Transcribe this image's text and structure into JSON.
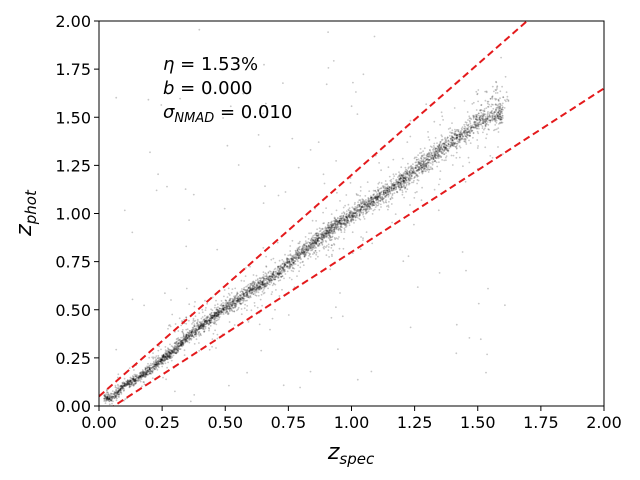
{
  "chart_data": {
    "type": "scatter",
    "title": "",
    "xlabel": {
      "base": "z",
      "sub": "spec"
    },
    "ylabel": {
      "base": "z",
      "sub": "phot"
    },
    "xlim": [
      0.0,
      2.0
    ],
    "ylim": [
      0.0,
      2.0
    ],
    "x_ticks": [
      "0.00",
      "0.25",
      "0.50",
      "0.75",
      "1.00",
      "1.25",
      "1.50",
      "1.75",
      "2.00"
    ],
    "y_ticks": [
      "0.00",
      "0.25",
      "0.50",
      "0.75",
      "1.00",
      "1.25",
      "1.50",
      "1.75",
      "2.00"
    ],
    "grid": false,
    "legend": "none",
    "point_color": "#000000",
    "annotations": {
      "eta": {
        "symbol": "η",
        "value": " = 1.53%"
      },
      "bias": {
        "symbol": "b",
        "value": " = 0.000"
      },
      "sigma": {
        "symbol": "σ",
        "sub": "NMAD",
        "value": " = 0.010"
      }
    },
    "outlier_bounds": {
      "color": "#e41a1c",
      "style": "dashed",
      "upper": {
        "slope": 1.15,
        "intercept": 0.05
      },
      "lower": {
        "slope": 0.85,
        "intercept": -0.05
      }
    },
    "main_relation": {
      "x_range": [
        0.02,
        1.6
      ],
      "series": [
        {
          "x": 0.05,
          "y": 0.04
        },
        {
          "x": 0.1,
          "y": 0.11
        },
        {
          "x": 0.15,
          "y": 0.14
        },
        {
          "x": 0.2,
          "y": 0.19
        },
        {
          "x": 0.25,
          "y": 0.24
        },
        {
          "x": 0.3,
          "y": 0.29
        },
        {
          "x": 0.35,
          "y": 0.36
        },
        {
          "x": 0.4,
          "y": 0.41
        },
        {
          "x": 0.45,
          "y": 0.46
        },
        {
          "x": 0.5,
          "y": 0.51
        },
        {
          "x": 0.55,
          "y": 0.55
        },
        {
          "x": 0.6,
          "y": 0.6
        },
        {
          "x": 0.65,
          "y": 0.64
        },
        {
          "x": 0.7,
          "y": 0.68
        },
        {
          "x": 0.75,
          "y": 0.74
        },
        {
          "x": 0.8,
          "y": 0.79
        },
        {
          "x": 0.85,
          "y": 0.85
        },
        {
          "x": 0.9,
          "y": 0.9
        },
        {
          "x": 0.95,
          "y": 0.95
        },
        {
          "x": 1.0,
          "y": 0.99
        },
        {
          "x": 1.05,
          "y": 1.04
        },
        {
          "x": 1.1,
          "y": 1.08
        },
        {
          "x": 1.15,
          "y": 1.12
        },
        {
          "x": 1.2,
          "y": 1.17
        },
        {
          "x": 1.25,
          "y": 1.22
        },
        {
          "x": 1.3,
          "y": 1.27
        },
        {
          "x": 1.35,
          "y": 1.33
        },
        {
          "x": 1.4,
          "y": 1.38
        },
        {
          "x": 1.45,
          "y": 1.42
        },
        {
          "x": 1.5,
          "y": 1.48
        },
        {
          "x": 1.55,
          "y": 1.5
        },
        {
          "x": 1.6,
          "y": 1.52
        }
      ]
    },
    "secondary_clumps": [
      {
        "x": 0.35,
        "y": 0.42
      },
      {
        "x": 0.9,
        "y": 0.85
      },
      {
        "x": 1.57,
        "y": 1.6
      }
    ],
    "n_points": 5000
  }
}
